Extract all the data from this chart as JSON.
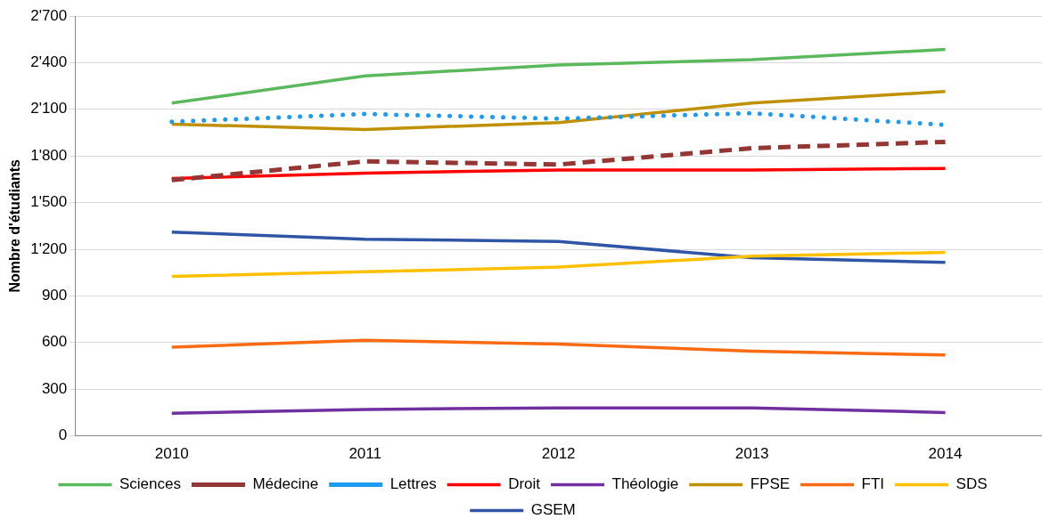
{
  "chart_data": {
    "type": "line",
    "ylabel": "Nombre d'étudiants",
    "categories": [
      "2010",
      "2011",
      "2012",
      "2013",
      "2014"
    ],
    "series": [
      {
        "name": "Sciences",
        "color": "#5cb85c",
        "values": [
          2140,
          2315,
          2385,
          2420,
          2485
        ]
      },
      {
        "name": "Médecine",
        "color": "#943634",
        "line_style": "dashed",
        "values": [
          1645,
          1765,
          1745,
          1850,
          1890
        ]
      },
      {
        "name": "Lettres",
        "color": "#1e9bf0",
        "line_style": "dotted",
        "values": [
          2020,
          2070,
          2040,
          2075,
          2000
        ]
      },
      {
        "name": "Droit",
        "color": "#ff0000",
        "values": [
          1655,
          1690,
          1710,
          1710,
          1720
        ]
      },
      {
        "name": "Théologie",
        "color": "#7030a0",
        "values": [
          145,
          170,
          180,
          180,
          150
        ]
      },
      {
        "name": "FPSE",
        "color": "#bf9000",
        "values": [
          2005,
          1970,
          2015,
          2140,
          2215
        ]
      },
      {
        "name": "FTI",
        "color": "#f96a12",
        "values": [
          570,
          615,
          590,
          545,
          520
        ]
      },
      {
        "name": "SDS",
        "color": "#ffc000",
        "values": [
          1025,
          1055,
          1085,
          1155,
          1180
        ]
      },
      {
        "name": "GSEM",
        "color": "#2f55a4",
        "values": [
          1310,
          1265,
          1250,
          1145,
          1115
        ]
      }
    ],
    "ylim": [
      0,
      2700
    ],
    "yticks": [
      0,
      300,
      600,
      900,
      {
        "value": 1200,
        "label": "1'200"
      },
      {
        "value": 1500,
        "label": "1'500"
      },
      {
        "value": 1800,
        "label": "1'800"
      },
      {
        "value": 2100,
        "label": "2'100"
      },
      {
        "value": 2400,
        "label": "2'400"
      },
      {
        "value": 2700,
        "label": "2'700"
      }
    ],
    "grid": "y",
    "legend": "bottom",
    "marker": "none",
    "line_style": "solid"
  }
}
